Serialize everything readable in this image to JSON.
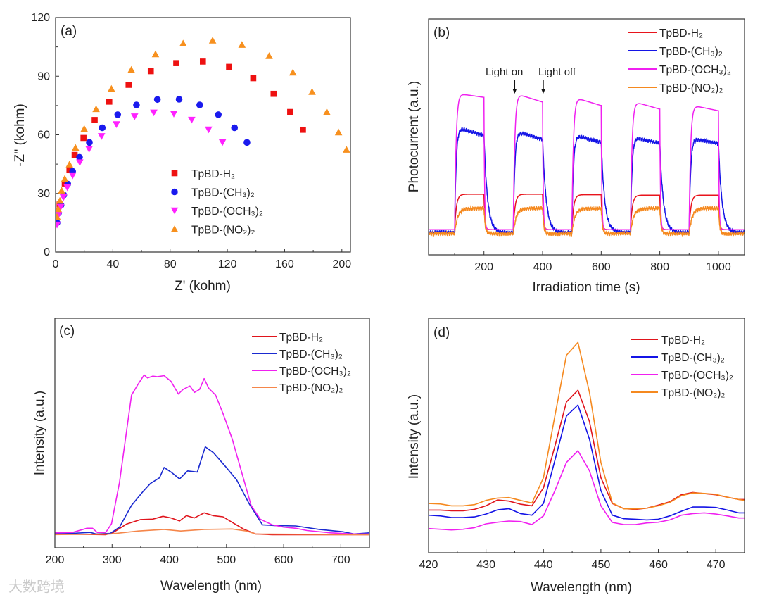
{
  "watermark": "大数跨境",
  "colors": {
    "red": "#e8141c",
    "blue": "#1414e6",
    "magenta": "#f020f0",
    "orange": "#f5891f"
  },
  "chart_data": [
    {
      "panel": "(a)",
      "type": "scatter",
      "xlabel": "Z' (kohm)",
      "ylabel": "-Z'' (kohm)",
      "xlim": [
        0,
        206
      ],
      "ylim": [
        0,
        120
      ],
      "xticks": [
        0,
        40,
        80,
        120,
        160,
        200
      ],
      "yticks": [
        0,
        30,
        60,
        90,
        120
      ],
      "legend_position": "center",
      "series": [
        {
          "name": "TpBD-H₂",
          "color": "#ee1111",
          "marker": "square",
          "x": [
            0.2,
            1.5,
            2.8,
            6.4,
            9.7,
            13.3,
            19.5,
            27.3,
            37.5,
            51,
            66.5,
            84.3,
            102.9,
            121.2,
            138.1,
            152.3,
            163.9,
            172.8
          ],
          "y": [
            16.2,
            20.9,
            24.3,
            35.1,
            41.9,
            49.7,
            58.4,
            67.6,
            77,
            85.6,
            92.6,
            96.7,
            97.5,
            94.8,
            89,
            81,
            71.7,
            62.6
          ]
        },
        {
          "name": "TpBD-(CH₃)₂",
          "color": "#1a1aee",
          "marker": "circle",
          "x": [
            1,
            2,
            3.8,
            5.7,
            8.5,
            11.9,
            16.7,
            23.6,
            32.6,
            43.4,
            56.5,
            71.1,
            86.3,
            100.7,
            113.7,
            125,
            133.7
          ],
          "y": [
            15,
            20,
            24,
            29.2,
            34.8,
            41.3,
            48.5,
            56.1,
            63.6,
            70.3,
            75.3,
            78.1,
            78.2,
            75.3,
            70.3,
            63.6,
            56.1
          ]
        },
        {
          "name": "TpBD-(OCH₃)₂",
          "color": "#ff22ff",
          "marker": "triangle-down",
          "x": [
            1,
            2,
            3.5,
            5.5,
            8.2,
            11.9,
            16.9,
            23.4,
            32.1,
            42.5,
            55.2,
            68.6,
            82.6,
            95.1,
            106.9,
            116.6
          ],
          "y": [
            14,
            19,
            23,
            28,
            33.1,
            39.2,
            45.9,
            52.7,
            59.3,
            65.4,
            69.4,
            71.4,
            70.8,
            67.7,
            62.7,
            56.2
          ]
        },
        {
          "name": "TpBD-(NO₂)₂",
          "color": "#f7901e",
          "marker": "triangle-up",
          "x": [
            1,
            1.8,
            3,
            4.2,
            6.4,
            9.7,
            13.9,
            20,
            28.3,
            39,
            52.9,
            69.8,
            89.1,
            109.7,
            130.2,
            149.2,
            165.8,
            179.2,
            189.5,
            197.7,
            203.2
          ],
          "y": [
            18,
            22,
            26.3,
            31.5,
            37.5,
            44.9,
            53.4,
            63.1,
            73.2,
            83.6,
            93.3,
            101.3,
            106.8,
            108.3,
            106.1,
            100.4,
            91.9,
            82,
            71.7,
            61.3,
            52.4
          ]
        }
      ]
    },
    {
      "panel": "(b)",
      "type": "line",
      "xlabel": "Irradiation time (s)",
      "ylabel": "Photocurrent (a.u.)",
      "xlim": [
        11,
        1089
      ],
      "ylim": [
        0,
        100
      ],
      "xticks": [
        200,
        400,
        600,
        800,
        1000
      ],
      "legend_position": "top-right",
      "annotations": [
        "Light on",
        "Light off"
      ],
      "annotation_x": [
        300,
        400
      ],
      "light_on": [
        100,
        300,
        500,
        700,
        900
      ],
      "light_off": [
        200,
        400,
        600,
        800,
        1000
      ],
      "series": [
        {
          "name": "TpBD-H₂",
          "color": "#e8141c",
          "baseline": 10.7,
          "peak": [
            25.7,
            25.7,
            25.5,
            25.3,
            25.3
          ],
          "end": [
            25.7,
            25.7,
            25.5,
            25.3,
            25.3
          ],
          "rise_s": 6,
          "decay_s": 3
        },
        {
          "name": "TpBD-(CH₃)₂",
          "color": "#1414e6",
          "baseline": 9.5,
          "peak": [
            53.8,
            52,
            50.5,
            49.8,
            49.3
          ],
          "end": [
            50.5,
            49,
            47.8,
            47.3,
            47.1
          ],
          "rise_s": 5,
          "decay_s": 12
        },
        {
          "name": "TpBD-(OCH₃)₂",
          "color": "#f020f0",
          "baseline": 10.7,
          "peak": [
            68.3,
            68.1,
            66.5,
            64.8,
            63.3
          ],
          "end": [
            66.8,
            64.8,
            63.3,
            61.8,
            61.1
          ],
          "rise_s": 5,
          "decay_s": 2
        },
        {
          "name": "TpBD-(NO₂)₂",
          "color": "#f5891f",
          "baseline": 9,
          "peak": [
            19.7,
            19.7,
            19.7,
            19.7,
            19.7
          ],
          "end": [
            19.7,
            19.7,
            19.7,
            19.7,
            19.7
          ],
          "rise_s": 10,
          "decay_s": 4
        }
      ]
    },
    {
      "panel": "(c)",
      "type": "line",
      "xlabel": "Wavelength (nm)",
      "ylabel": "Intensity (a.u.)",
      "xlim": [
        200,
        750
      ],
      "ylim": [
        0,
        100
      ],
      "xticks": [
        200,
        300,
        400,
        500,
        600,
        700
      ],
      "legend_position": "top-right",
      "series": [
        {
          "name": "TpBD-H₂",
          "color": "#e0141c",
          "x": [
            198,
            289,
            301,
            325,
            350,
            371,
            389,
            403,
            418,
            430,
            444,
            461,
            477,
            494,
            514,
            531,
            551,
            580,
            750
          ],
          "y": [
            6,
            5.7,
            6.5,
            10.3,
            12.3,
            12.5,
            13.7,
            13,
            11.7,
            14,
            13,
            15.2,
            14,
            13.5,
            10.5,
            8,
            6,
            5.7,
            5.7
          ]
        },
        {
          "name": "TpBD-(CH₃)₂",
          "color": "#1a2ad0",
          "x": [
            198,
            231,
            262,
            272,
            297,
            313,
            334,
            354,
            367,
            383,
            391,
            403,
            418,
            432,
            449,
            463,
            477,
            498,
            518,
            539,
            563,
            584,
            621,
            662,
            703,
            723,
            750
          ],
          "y": [
            6,
            6.3,
            6.7,
            6,
            6.3,
            9,
            18.5,
            24.5,
            28,
            30.5,
            35,
            33,
            30,
            33.5,
            33,
            44,
            41.5,
            35.5,
            29.5,
            19.5,
            10,
            9.7,
            9.5,
            8,
            7,
            6,
            6.5
          ]
        },
        {
          "name": "TpBD-(OCH₃)₂",
          "color": "#f020f0",
          "x": [
            198,
            231,
            256,
            266,
            274,
            289,
            299,
            313,
            334,
            346,
            356,
            362,
            371,
            379,
            391,
            403,
            416,
            424,
            436,
            444,
            453,
            461,
            469,
            481,
            494,
            510,
            526,
            543,
            559,
            580,
            600,
            621,
            641,
            682,
            723,
            750
          ],
          "y": [
            6.5,
            6.7,
            8.5,
            8.5,
            6.7,
            6.7,
            10.5,
            28.5,
            66.5,
            71.5,
            75.3,
            74,
            74.8,
            74.5,
            75,
            72.5,
            67,
            69,
            70.5,
            67.7,
            69,
            73.7,
            69.5,
            66.5,
            58.5,
            47.5,
            33.5,
            18.5,
            12.5,
            10,
            9,
            8.5,
            7.5,
            6.5,
            6,
            6
          ]
        },
        {
          "name": "TpBD-(NO₂)₂",
          "color": "#f5864a",
          "x": [
            198,
            297,
            346,
            391,
            420,
            461,
            510,
            535,
            551,
            750
          ],
          "y": [
            5.7,
            6,
            7.3,
            8,
            7.3,
            8,
            8.2,
            7.3,
            6,
            5.7
          ]
        }
      ]
    },
    {
      "panel": "(d)",
      "type": "line",
      "xlabel": "Wavelength (nm)",
      "ylabel": "Intensity (a.u.)",
      "xlim": [
        420,
        475
      ],
      "ylim": [
        0,
        100
      ],
      "xticks": [
        420,
        430,
        440,
        450,
        460,
        470
      ],
      "legend_position": "top-right",
      "x": [
        420,
        422,
        424,
        426,
        428,
        430,
        432,
        434,
        436,
        438,
        440,
        442,
        444,
        446,
        448,
        450,
        452,
        454,
        456,
        458,
        460,
        462,
        464,
        466,
        468,
        470,
        472,
        474,
        475
      ],
      "series": [
        {
          "name": "TpBD-H₂",
          "color": "#e0141c",
          "y": [
            18.2,
            18.2,
            17.9,
            17.9,
            18.5,
            20,
            22.5,
            22,
            20.7,
            20,
            27.7,
            45.5,
            64.3,
            69.3,
            56,
            32,
            21,
            18.8,
            18.5,
            19,
            20.3,
            21.7,
            24.7,
            25.7,
            25.2,
            24.7,
            23.7,
            22.7,
            22.7
          ]
        },
        {
          "name": "TpBD-(CH₃)₂",
          "color": "#1414e6",
          "y": [
            16,
            15.7,
            15,
            15,
            15.3,
            16.5,
            18.3,
            18.8,
            16.7,
            16,
            21,
            39.5,
            58.3,
            63,
            48.5,
            26.5,
            16,
            14.5,
            14.3,
            14,
            14.3,
            15.7,
            17.7,
            19.5,
            19.5,
            19.3,
            18.2,
            17,
            17
          ]
        },
        {
          "name": "TpBD-(OCH₃)₂",
          "color": "#f020f0",
          "y": [
            10.3,
            10,
            9.7,
            10,
            10.7,
            12.3,
            13,
            13.5,
            13.3,
            12,
            15.7,
            26.5,
            38.5,
            43.5,
            35,
            20,
            12.9,
            12,
            12,
            12.7,
            13,
            14,
            16,
            16.7,
            17,
            16.5,
            15.7,
            14.8,
            14.8
          ]
        },
        {
          "name": "TpBD-(NO₂)₂",
          "color": "#f5891f",
          "y": [
            21,
            20.8,
            20,
            20,
            20.5,
            22.3,
            23.3,
            23.5,
            22.3,
            21.2,
            32,
            58.5,
            84.2,
            89.7,
            68.5,
            38.5,
            21.2,
            18.7,
            18.7,
            19,
            20,
            21.5,
            24.3,
            25.5,
            25.3,
            24.9,
            23.7,
            22.7,
            22.3
          ]
        }
      ]
    }
  ]
}
